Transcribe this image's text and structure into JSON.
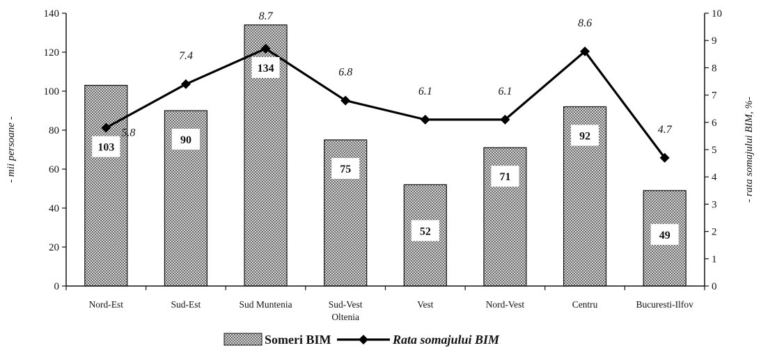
{
  "chart_data": {
    "type": "bar",
    "categories": [
      [
        "Nord-Est"
      ],
      [
        "Sud-Est"
      ],
      [
        "Sud Muntenia"
      ],
      [
        "Sud-Vest",
        "Oltenia"
      ],
      [
        "Vest"
      ],
      [
        "Nord-Vest"
      ],
      [
        "Centru"
      ],
      [
        "Bucuresti-Ilfov"
      ]
    ],
    "series": [
      {
        "name": "Someri BIM",
        "type": "bar",
        "axis": "left",
        "values": [
          103,
          90,
          134,
          75,
          52,
          71,
          92,
          49
        ],
        "labels": [
          "103",
          "90",
          "134",
          "75",
          "52",
          "71",
          "92",
          "49"
        ]
      },
      {
        "name": "Rata somajului BIM",
        "type": "line",
        "axis": "right",
        "values": [
          5.8,
          7.4,
          8.7,
          6.8,
          6.1,
          6.1,
          8.6,
          4.7
        ],
        "labels": [
          "5.8",
          "7.4",
          "8.7",
          "6.8",
          "6.1",
          "6.1",
          "8.6",
          "4.7"
        ]
      }
    ],
    "ylabel": "- mii persoane -",
    "y2label": "- rata somajului BIM, %-",
    "ylim": [
      0,
      140
    ],
    "y2lim": [
      0,
      10
    ],
    "yticks": [
      "0",
      "20",
      "40",
      "60",
      "80",
      "100",
      "120",
      "140"
    ],
    "y2ticks": [
      "0",
      "1",
      "2",
      "3",
      "4",
      "5",
      "6",
      "7",
      "8",
      "9",
      "10"
    ],
    "grid": false,
    "legend": "bottom"
  }
}
